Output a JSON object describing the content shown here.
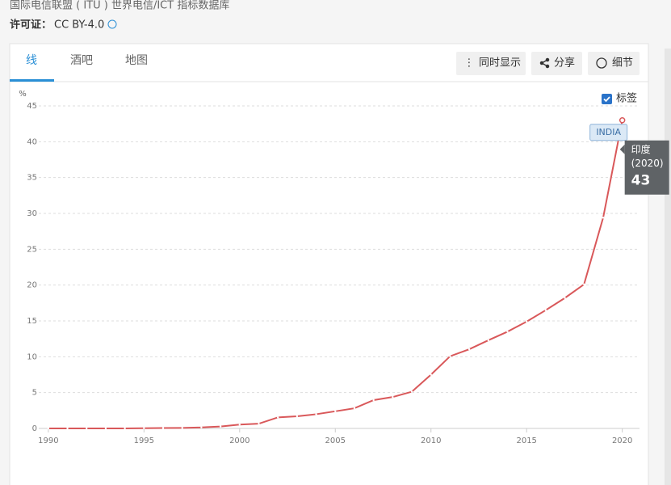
{
  "header": {
    "source": "国际电信联盟 ( ITU ) 世界电信/ICT 指标数据库",
    "license_label": "许可证：",
    "license": "CC BY-4.0"
  },
  "tabs": [
    "线",
    "酒吧",
    "地图"
  ],
  "buttons": [
    "同时显示",
    "分享",
    "细节"
  ],
  "label_toggle": "标签",
  "chart_data": {
    "type": "line",
    "y_label": "%",
    "x": [
      1990,
      1991,
      1992,
      1993,
      1994,
      1995,
      1996,
      1997,
      1998,
      1999,
      2000,
      2001,
      2002,
      2003,
      2004,
      2005,
      2006,
      2007,
      2008,
      2009,
      2010,
      2011,
      2012,
      2013,
      2014,
      2015,
      2016,
      2017,
      2018,
      2019,
      2020
    ],
    "series": [
      {
        "name": "INDIA",
        "color": "#d9585a",
        "values": [
          0,
          0,
          0,
          0,
          0.001,
          0.03,
          0.05,
          0.07,
          0.14,
          0.27,
          0.53,
          0.66,
          1.54,
          1.69,
          1.98,
          2.39,
          2.81,
          3.95,
          4.38,
          5.12,
          7.5,
          10.07,
          11.05,
          12.3,
          13.5,
          14.9,
          16.5,
          18.2,
          20.1,
          29.4,
          43
        ]
      }
    ],
    "xlim": [
      1989.5,
      2020.9
    ],
    "ylim": [
      0,
      45
    ],
    "xticks": [
      1990,
      1995,
      2000,
      2005,
      2010,
      2015,
      2020
    ],
    "yticks": [
      0,
      5,
      10,
      15,
      20,
      25,
      30,
      35,
      40,
      45
    ],
    "grid": true,
    "tooltip": {
      "name": "印度",
      "year": "(2020)"
    }
  }
}
